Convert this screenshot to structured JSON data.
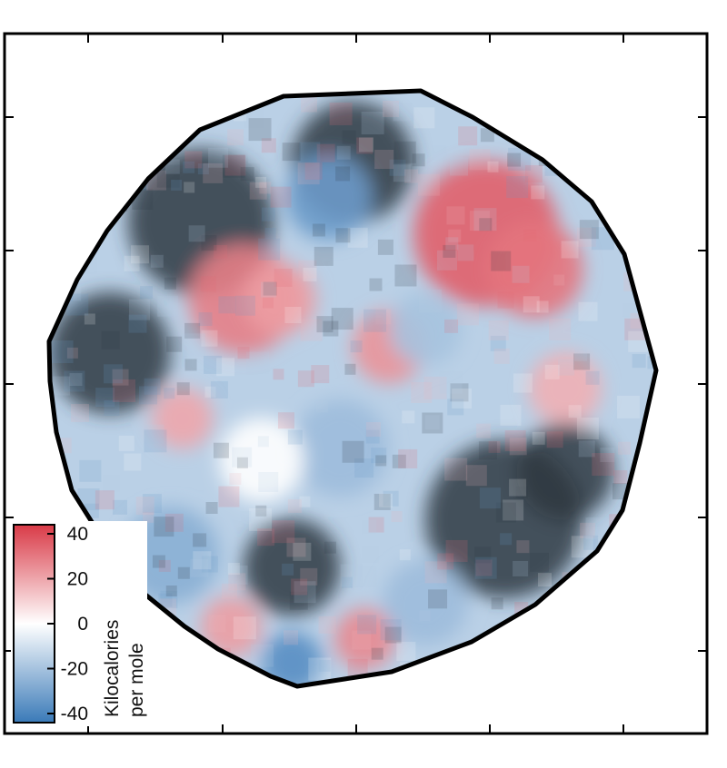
{
  "chart_data": {
    "type": "heatmap",
    "title": "",
    "xlabel": "",
    "ylabel": "",
    "colormap": {
      "negative_color": "#3a7ab8",
      "neutral_color": "#ffffff",
      "positive_color": "#d93a47",
      "dark_patch_color": "#2f3942"
    },
    "colorbar": {
      "title_lines": [
        "Kilocalories",
        "per mole"
      ],
      "ticks": [
        {
          "value": 40,
          "label": "40"
        },
        {
          "value": 20,
          "label": "20"
        },
        {
          "value": 0,
          "label": "0"
        },
        {
          "value": -20,
          "label": "-20"
        },
        {
          "value": -40,
          "label": "-40"
        }
      ],
      "range": [
        -40,
        40
      ]
    },
    "regions": [
      {
        "cx": 0.25,
        "cy": 0.22,
        "r": 0.12,
        "value": "dark"
      },
      {
        "cx": 0.5,
        "cy": 0.12,
        "r": 0.1,
        "value": "dark"
      },
      {
        "cx": 0.46,
        "cy": 0.18,
        "r": 0.07,
        "value": -30
      },
      {
        "cx": 0.72,
        "cy": 0.24,
        "r": 0.12,
        "value": 32
      },
      {
        "cx": 0.8,
        "cy": 0.3,
        "r": 0.08,
        "value": 28
      },
      {
        "cx": 0.32,
        "cy": 0.35,
        "r": 0.09,
        "value": 26
      },
      {
        "cx": 0.38,
        "cy": 0.35,
        "r": 0.06,
        "value": 20
      },
      {
        "cx": 0.1,
        "cy": 0.44,
        "r": 0.1,
        "value": "dark"
      },
      {
        "cx": 0.56,
        "cy": 0.43,
        "r": 0.06,
        "value": 22
      },
      {
        "cx": 0.62,
        "cy": 0.4,
        "r": 0.06,
        "value": -18
      },
      {
        "cx": 0.85,
        "cy": 0.5,
        "r": 0.06,
        "value": 16
      },
      {
        "cx": 0.22,
        "cy": 0.55,
        "r": 0.05,
        "value": 18
      },
      {
        "cx": 0.48,
        "cy": 0.6,
        "r": 0.08,
        "value": -20
      },
      {
        "cx": 0.35,
        "cy": 0.62,
        "r": 0.07,
        "value": 0
      },
      {
        "cx": 0.75,
        "cy": 0.72,
        "r": 0.13,
        "value": "dark"
      },
      {
        "cx": 0.85,
        "cy": 0.64,
        "r": 0.08,
        "value": "dark"
      },
      {
        "cx": 0.4,
        "cy": 0.8,
        "r": 0.08,
        "value": "dark"
      },
      {
        "cx": 0.2,
        "cy": 0.78,
        "r": 0.08,
        "value": -24
      },
      {
        "cx": 0.52,
        "cy": 0.92,
        "r": 0.05,
        "value": 24
      },
      {
        "cx": 0.4,
        "cy": 0.96,
        "r": 0.05,
        "value": -34
      },
      {
        "cx": 0.62,
        "cy": 0.86,
        "r": 0.07,
        "value": -20
      },
      {
        "cx": 0.3,
        "cy": 0.9,
        "r": 0.05,
        "value": 20
      }
    ]
  }
}
